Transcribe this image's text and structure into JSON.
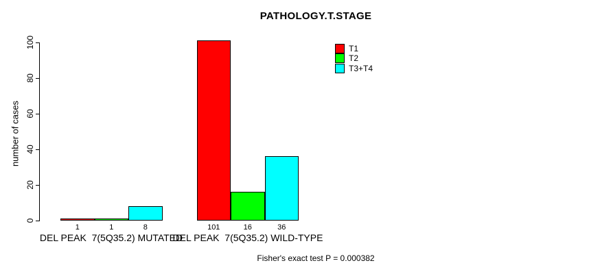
{
  "chart_data": {
    "type": "bar",
    "title": "PATHOLOGY.T.STAGE",
    "xlabel": "",
    "ylabel": "number of cases",
    "ylim": [
      0,
      100
    ],
    "yticks": [
      0,
      20,
      40,
      60,
      80,
      100
    ],
    "grid": false,
    "legend_position": "top-right",
    "bar_border_color": "#000000",
    "background_color": "#ffffff",
    "categories": [
      "DEL PEAK  7(5Q35.2) MUTATED",
      "DEL PEAK  7(5Q35.2) WILD-TYPE"
    ],
    "series": [
      {
        "name": "T1",
        "color": "#ff0000",
        "values": [
          1,
          101
        ]
      },
      {
        "name": "T2",
        "color": "#00ff00",
        "values": [
          1,
          16
        ]
      },
      {
        "name": "T3+T4",
        "color": "#00ffff",
        "values": [
          8,
          36
        ]
      }
    ],
    "value_labels_shown": true,
    "footnote": "Fisher's exact test P = 0.000382"
  }
}
